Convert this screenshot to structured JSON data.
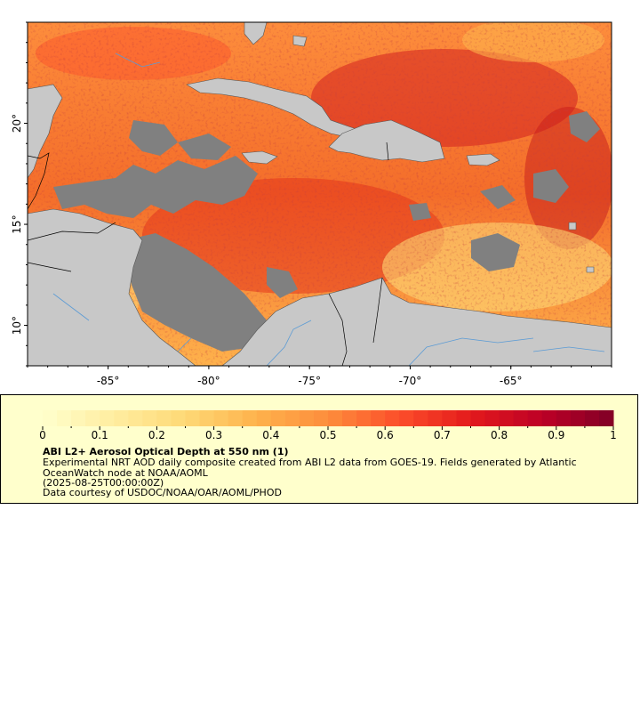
{
  "map": {
    "lon_range": [
      -89,
      -60
    ],
    "lat_range": [
      8,
      25
    ],
    "x_ticks": [
      "-85°",
      "-80°",
      "-75°",
      "-70°",
      "-65°"
    ],
    "y_ticks": [
      "20°",
      "15°",
      "10°"
    ],
    "colors": {
      "land": "#c8c8c8",
      "no_data": "#808080",
      "rivers": "#5b9bd5",
      "borders": "#000000"
    }
  },
  "colorbar": {
    "min": 0,
    "max": 1,
    "tick_labels": [
      "0",
      "0.1",
      "0.2",
      "0.3",
      "0.4",
      "0.5",
      "0.6",
      "0.7",
      "0.8",
      "0.9",
      "1"
    ],
    "colors": [
      "#ffffcc",
      "#ffeda0",
      "#fed976",
      "#feb24c",
      "#fd8d3c",
      "#fc4e2a",
      "#e31a1c",
      "#bd0026",
      "#800026"
    ]
  },
  "legend": {
    "title": "ABI L2+ Aerosol Optical Depth at 550 nm (1)",
    "description_line1": "Experimental NRT AOD daily composite created from ABI L2 data from GOES-19. Fields generated by Atlantic",
    "description_line2": "OceanWatch node at NOAA/AOML",
    "date": "(2025-08-25T00:00:00Z)",
    "credit": "Data courtesy of USDOC/NOAA/OAR/AOML/PHOD"
  }
}
